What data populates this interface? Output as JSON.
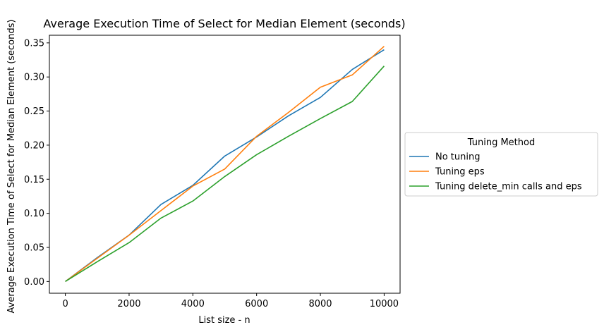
{
  "chart_data": {
    "type": "line",
    "title": "Average Execution Time of Select for Median Element (seconds)",
    "xlabel": "List size - n",
    "ylabel": "Average Execution Time of Select for Median Element (seconds)",
    "xlim": [
      -500,
      10500
    ],
    "ylim": [
      -0.0172,
      0.3612
    ],
    "x_ticks": [
      0,
      2000,
      4000,
      6000,
      8000,
      10000
    ],
    "x_tick_labels": [
      "0",
      "2000",
      "4000",
      "6000",
      "8000",
      "10000"
    ],
    "y_ticks": [
      0.0,
      0.05,
      0.1,
      0.15,
      0.2,
      0.25,
      0.3,
      0.35
    ],
    "y_tick_labels": [
      "0.00",
      "0.05",
      "0.10",
      "0.15",
      "0.20",
      "0.25",
      "0.30",
      "0.35"
    ],
    "grid": false,
    "legend": {
      "title": "Tuning Method",
      "placement": "center-left outside"
    },
    "x": [
      0,
      1000,
      2000,
      3000,
      4000,
      5000,
      6000,
      7000,
      8000,
      9000,
      10000
    ],
    "series": [
      {
        "name": "No tuning",
        "color": "#1f77b4",
        "values": [
          0.0,
          0.035,
          0.068,
          0.113,
          0.141,
          0.184,
          0.212,
          0.243,
          0.27,
          0.311,
          0.34
        ]
      },
      {
        "name": "Tuning eps",
        "color": "#ff7f0e",
        "values": [
          0.0,
          0.034,
          0.068,
          0.104,
          0.14,
          0.165,
          0.213,
          0.248,
          0.285,
          0.303,
          0.345
        ]
      },
      {
        "name": "Tuning delete_min calls and eps",
        "color": "#2ca02c",
        "values": [
          0.0,
          0.029,
          0.057,
          0.093,
          0.118,
          0.154,
          0.186,
          0.213,
          0.239,
          0.264,
          0.316
        ]
      }
    ]
  }
}
